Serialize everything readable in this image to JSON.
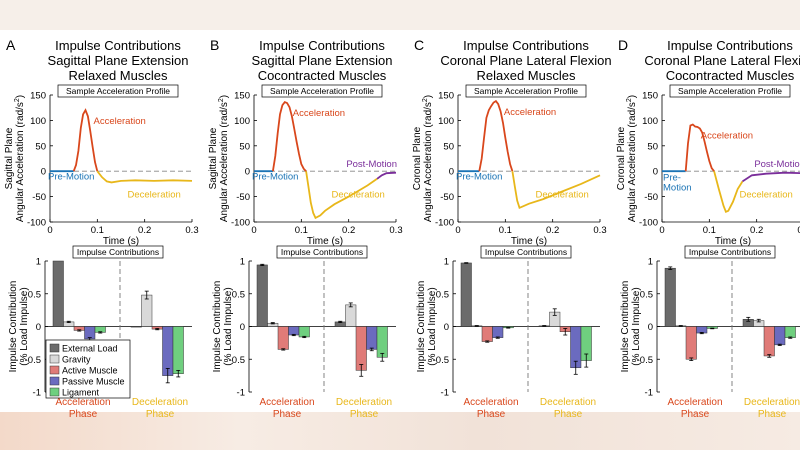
{
  "figure": {
    "profile_box_label": "Sample Acceleration Profile",
    "impulse_box_label": "Impulse Contributions",
    "top_xlabel": "Time (s)",
    "bottom_ylabel_line1": "Impulse Contribution",
    "bottom_ylabel_line2": "(% Load Impulse)",
    "phase_labels": {
      "acc_line1": "Acceleration",
      "acc_line2": "Phase",
      "dec_line1": "Deceleration",
      "dec_line2": "Phase"
    },
    "segment_labels": {
      "pre": "Pre-Motion",
      "pre_1": "Pre-",
      "pre_2": "Motion",
      "acc": "Acceleration",
      "dec": "Deceleration",
      "post": "Post-Motion"
    },
    "legend": [
      "External Load",
      "Gravity",
      "Active Muscle",
      "Passive Muscle",
      "Ligament"
    ],
    "colors": {
      "external": "#6b6b6b",
      "gravity": "#d9d9d9",
      "active": "#e07b78",
      "passive": "#6b6bbf",
      "ligament": "#6fcf7f",
      "pre": "#1a73b5",
      "acc": "#d9471c",
      "dec": "#e8b71a",
      "post": "#7a2e9a"
    }
  },
  "panels": [
    {
      "letter": "A",
      "title_1": "Impulse Contributions",
      "title_2": "Sagittal Plane Extension",
      "title_3": "Relaxed Muscles",
      "ylabel_1": "Sagittal Plane",
      "ylabel_2": "Angular Acceleration (rad/s",
      "ylabel_sup": "2",
      "ylabel_3": ")"
    },
    {
      "letter": "B",
      "title_1": "Impulse Contributions",
      "title_2": "Sagittal Plane Extension",
      "title_3": "Cocontracted Muscles",
      "ylabel_1": "Sagittal Plane",
      "ylabel_2": "Angular Acceleration (rad/s",
      "ylabel_sup": "2",
      "ylabel_3": ")"
    },
    {
      "letter": "C",
      "title_1": "Impulse Contributions",
      "title_2": "Coronal Plane Lateral Flexion",
      "title_3": "Relaxed Muscles",
      "ylabel_1": "Coronal Plane",
      "ylabel_2": "Angular Acceleration (rad/s",
      "ylabel_sup": "2",
      "ylabel_3": ")"
    },
    {
      "letter": "D",
      "title_1": "Impulse Contributions",
      "title_2": "Coronal Plane Lateral Flexion",
      "title_3": "Cocontracted Muscles",
      "ylabel_1": "Coronal Plane",
      "ylabel_2": "Angular Acceleration (rad/s",
      "ylabel_sup": "2",
      "ylabel_3": ")"
    }
  ],
  "chart_data": [
    {
      "type": "line",
      "title": "Sample Acceleration Profile",
      "xlabel": "Time (s)",
      "xlim": [
        0,
        0.3
      ],
      "ylim": [
        -100,
        150
      ],
      "xticks": [
        0,
        0.1,
        0.2,
        0.3
      ],
      "yticks": [
        -100,
        -50,
        0,
        50,
        100,
        150
      ],
      "series": [
        {
          "name": "Pre-Motion",
          "x": [
            0,
            0.05
          ],
          "y": [
            0,
            0
          ]
        },
        {
          "name": "Acceleration",
          "x": [
            0.05,
            0.055,
            0.06,
            0.065,
            0.07,
            0.075,
            0.08,
            0.085,
            0.09,
            0.095,
            0.1
          ],
          "y": [
            0,
            12,
            40,
            85,
            112,
            120,
            108,
            80,
            48,
            18,
            0
          ]
        },
        {
          "name": "Deceleration",
          "x": [
            0.1,
            0.11,
            0.12,
            0.13,
            0.15,
            0.18,
            0.22,
            0.26,
            0.3
          ],
          "y": [
            0,
            -12,
            -20,
            -22,
            -19,
            -18,
            -19,
            -18,
            -19
          ]
        }
      ]
    },
    {
      "type": "bar",
      "title": "Impulse Contributions",
      "ylabel": "Impulse Contribution (% Load Impulse)",
      "ylim": [
        -1,
        1
      ],
      "yticks": [
        -1,
        -0.5,
        0,
        0.5,
        1
      ],
      "groups": [
        "Acceleration Phase",
        "Deceleration Phase"
      ],
      "series": [
        {
          "name": "External Load",
          "values": [
            1.0,
            0.0
          ],
          "errors": [
            0,
            0
          ]
        },
        {
          "name": "Gravity",
          "values": [
            0.07,
            0.48
          ],
          "errors": [
            0.01,
            0.06
          ]
        },
        {
          "name": "Active Muscle",
          "values": [
            -0.06,
            -0.04
          ],
          "errors": [
            0.01,
            0.01
          ]
        },
        {
          "name": "Passive Muscle",
          "values": [
            -0.19,
            -0.75
          ],
          "errors": [
            0.02,
            0.11
          ]
        },
        {
          "name": "Ligament",
          "values": [
            -0.09,
            -0.72
          ],
          "errors": [
            0.01,
            0.05
          ]
        }
      ]
    },
    {
      "type": "line",
      "title": "Sample Acceleration Profile",
      "xlabel": "Time (s)",
      "xlim": [
        0,
        0.3
      ],
      "ylim": [
        -100,
        150
      ],
      "xticks": [
        0,
        0.1,
        0.2,
        0.3
      ],
      "yticks": [
        -100,
        -50,
        0,
        50,
        100,
        150
      ],
      "series": [
        {
          "name": "Pre-Motion",
          "x": [
            0,
            0.04
          ],
          "y": [
            0,
            0
          ]
        },
        {
          "name": "Acceleration",
          "x": [
            0.04,
            0.045,
            0.05,
            0.055,
            0.06,
            0.065,
            0.07,
            0.075,
            0.08,
            0.085,
            0.09,
            0.095,
            0.1,
            0.105,
            0.11
          ],
          "y": [
            0,
            30,
            75,
            112,
            130,
            136,
            134,
            126,
            108,
            84,
            58,
            34,
            14,
            5,
            0
          ]
        },
        {
          "name": "Deceleration",
          "x": [
            0.11,
            0.115,
            0.12,
            0.125,
            0.13,
            0.14,
            0.15,
            0.17,
            0.2,
            0.24,
            0.26
          ],
          "y": [
            0,
            -30,
            -62,
            -82,
            -92,
            -87,
            -78,
            -65,
            -50,
            -28,
            -15
          ]
        },
        {
          "name": "Post-Motion",
          "x": [
            0.26,
            0.27,
            0.28,
            0.3
          ],
          "y": [
            -15,
            -8,
            -4,
            -3
          ]
        }
      ]
    },
    {
      "type": "bar",
      "title": "Impulse Contributions",
      "ylabel": "Impulse Contribution (% Load Impulse)",
      "ylim": [
        -1,
        1
      ],
      "yticks": [
        -1,
        -0.5,
        0,
        0.5,
        1
      ],
      "groups": [
        "Acceleration Phase",
        "Deceleration Phase"
      ],
      "series": [
        {
          "name": "External Load",
          "values": [
            0.94,
            0.07
          ],
          "errors": [
            0.01,
            0.01
          ]
        },
        {
          "name": "Gravity",
          "values": [
            0.05,
            0.33
          ],
          "errors": [
            0.01,
            0.03
          ]
        },
        {
          "name": "Active Muscle",
          "values": [
            -0.35,
            -0.67
          ],
          "errors": [
            0.01,
            0.09
          ]
        },
        {
          "name": "Passive Muscle",
          "values": [
            -0.13,
            -0.35
          ],
          "errors": [
            0.01,
            0.02
          ]
        },
        {
          "name": "Ligament",
          "values": [
            -0.16,
            -0.47
          ],
          "errors": [
            0.01,
            0.06
          ]
        }
      ]
    },
    {
      "type": "line",
      "title": "Sample Acceleration Profile",
      "xlabel": "Time (s)",
      "xlim": [
        0,
        0.3
      ],
      "ylim": [
        -100,
        150
      ],
      "xticks": [
        0,
        0.1,
        0.2,
        0.3
      ],
      "yticks": [
        -100,
        -50,
        0,
        50,
        100,
        150
      ],
      "series": [
        {
          "name": "Pre-Motion",
          "x": [
            0,
            0.045
          ],
          "y": [
            0,
            0
          ]
        },
        {
          "name": "Acceleration",
          "x": [
            0.045,
            0.05,
            0.055,
            0.06,
            0.065,
            0.07,
            0.075,
            0.08,
            0.085,
            0.09,
            0.095,
            0.1,
            0.105,
            0.11,
            0.115
          ],
          "y": [
            0,
            25,
            65,
            105,
            120,
            128,
            135,
            138,
            132,
            118,
            95,
            66,
            38,
            14,
            0
          ]
        },
        {
          "name": "Deceleration",
          "x": [
            0.115,
            0.12,
            0.125,
            0.13,
            0.135,
            0.15,
            0.18,
            0.22,
            0.26,
            0.3
          ],
          "y": [
            0,
            -30,
            -58,
            -72,
            -70,
            -64,
            -55,
            -40,
            -25,
            -8
          ]
        }
      ]
    },
    {
      "type": "bar",
      "title": "Impulse Contributions",
      "ylabel": "Impulse Contribution (% Load Impulse)",
      "ylim": [
        -1,
        1
      ],
      "yticks": [
        -1,
        -0.5,
        0,
        0.5,
        1
      ],
      "groups": [
        "Acceleration Phase",
        "Deceleration Phase"
      ],
      "series": [
        {
          "name": "External Load",
          "values": [
            0.97,
            0.01
          ],
          "errors": [
            0.005,
            0.005
          ]
        },
        {
          "name": "Gravity",
          "values": [
            0.01,
            0.22
          ],
          "errors": [
            0.005,
            0.05
          ]
        },
        {
          "name": "Active Muscle",
          "values": [
            -0.23,
            -0.08
          ],
          "errors": [
            0.01,
            0.05
          ]
        },
        {
          "name": "Passive Muscle",
          "values": [
            -0.17,
            -0.63
          ],
          "errors": [
            0.01,
            0.1
          ]
        },
        {
          "name": "Ligament",
          "values": [
            -0.02,
            -0.52
          ],
          "errors": [
            0.005,
            0.1
          ]
        }
      ]
    },
    {
      "type": "line",
      "title": "Sample Acceleration Profile",
      "xlabel": "Time (s)",
      "xlim": [
        0,
        0.3
      ],
      "ylim": [
        -100,
        150
      ],
      "xticks": [
        0,
        0.1,
        0.2,
        0.3
      ],
      "yticks": [
        -100,
        -50,
        0,
        50,
        100,
        150
      ],
      "series": [
        {
          "name": "Pre-Motion",
          "x": [
            0,
            0.05
          ],
          "y": [
            0,
            0
          ]
        },
        {
          "name": "Acceleration",
          "x": [
            0.05,
            0.055,
            0.06,
            0.065,
            0.07,
            0.075,
            0.08,
            0.085,
            0.09,
            0.095,
            0.1,
            0.105,
            0.11
          ],
          "y": [
            0,
            55,
            90,
            92,
            88,
            87,
            84,
            76,
            58,
            38,
            20,
            6,
            0
          ]
        },
        {
          "name": "Deceleration",
          "x": [
            0.11,
            0.12,
            0.13,
            0.135,
            0.14,
            0.15,
            0.16,
            0.17
          ],
          "y": [
            0,
            -35,
            -68,
            -80,
            -78,
            -60,
            -35,
            -20
          ]
        },
        {
          "name": "Post-Motion",
          "x": [
            0.17,
            0.19,
            0.22,
            0.26,
            0.3
          ],
          "y": [
            -20,
            -8,
            -5,
            -3,
            -4
          ]
        }
      ]
    },
    {
      "type": "bar",
      "title": "Impulse Contributions",
      "ylabel": "Impulse Contribution (% Load Impulse)",
      "ylim": [
        -1,
        1
      ],
      "yticks": [
        -1,
        -0.5,
        0,
        0.5,
        1
      ],
      "groups": [
        "Acceleration Phase",
        "Deceleration Phase"
      ],
      "series": [
        {
          "name": "External Load",
          "values": [
            0.89,
            0.11
          ],
          "errors": [
            0.02,
            0.03
          ]
        },
        {
          "name": "Gravity",
          "values": [
            0.01,
            0.09
          ],
          "errors": [
            0.005,
            0.02
          ]
        },
        {
          "name": "Active Muscle",
          "values": [
            -0.5,
            -0.45
          ],
          "errors": [
            0.02,
            0.02
          ]
        },
        {
          "name": "Passive Muscle",
          "values": [
            -0.1,
            -0.28
          ],
          "errors": [
            0.01,
            0.01
          ]
        },
        {
          "name": "Ligament",
          "values": [
            -0.03,
            -0.17
          ],
          "errors": [
            0.005,
            0.01
          ]
        }
      ]
    }
  ]
}
